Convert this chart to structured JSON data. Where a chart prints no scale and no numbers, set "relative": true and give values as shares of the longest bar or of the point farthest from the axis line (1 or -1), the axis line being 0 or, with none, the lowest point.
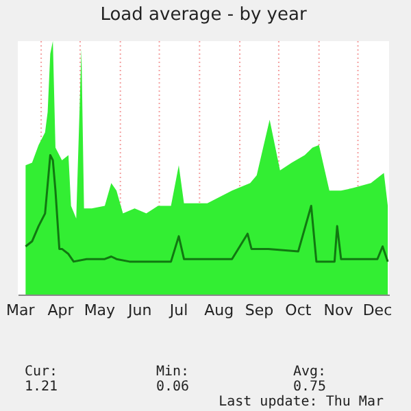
{
  "chart_data": {
    "type": "area",
    "title": "Load average - by year",
    "relative": true,
    "xlim": [
      "--03-14",
      "--12-25"
    ],
    "xticks": [
      {
        "value": "--03-16",
        "label": "Mar"
      },
      {
        "value": "--04-01",
        "label": null
      },
      {
        "value": "--04-16",
        "label": "Apr"
      },
      {
        "value": "--05-01",
        "label": null
      },
      {
        "value": "--05-16",
        "label": "May"
      },
      {
        "value": "--06-01",
        "label": null
      },
      {
        "value": "--06-16",
        "label": "Jun"
      },
      {
        "value": "--07-01",
        "label": null
      },
      {
        "value": "--07-16",
        "label": "Jul"
      },
      {
        "value": "--08-01",
        "label": null
      },
      {
        "value": "--08-16",
        "label": "Aug"
      },
      {
        "value": "--09-01",
        "label": null
      },
      {
        "value": "--09-16",
        "label": "Sep"
      },
      {
        "value": "--10-01",
        "label": null
      },
      {
        "value": "--10-16",
        "label": "Oct"
      },
      {
        "value": "--11-01",
        "label": null
      },
      {
        "value": "--11-16",
        "label": "Nov"
      },
      {
        "value": "--12-01",
        "label": null
      },
      {
        "value": "--12-16",
        "label": "Dec"
      }
    ],
    "grid": "x",
    "series": [
      {
        "color": "#33ee33",
        "x": [
          "--03-20",
          "--03-25",
          "--03-30",
          "--04-04",
          "--04-06",
          "--04-08",
          "--04-10",
          "--04-12",
          "--04-17",
          "--04-22",
          "--04-24",
          "--04-28",
          "--05-02",
          "--05-04",
          "--05-10",
          "--05-20",
          "--05-25",
          "--05-29",
          "--06-03",
          "--06-12",
          "--06-21",
          "--06-30",
          "--07-10",
          "--07-16",
          "--07-20",
          "--08-07",
          "--08-26",
          "--09-09",
          "--09-14",
          "--09-24",
          "--10-02",
          "--10-11",
          "--10-21",
          "--10-27",
          "--11-01",
          "--11-09",
          "--11-18",
          "--11-27",
          "--12-11",
          "--12-21",
          "--12-24"
        ],
        "values": [
          0.51,
          0.52,
          0.59,
          0.64,
          0.72,
          0.95,
          1,
          0.58,
          0.53,
          0.55,
          0.35,
          0.3,
          0.97,
          0.34,
          0.34,
          0.35,
          0.44,
          0.41,
          0.32,
          0.34,
          0.32,
          0.35,
          0.35,
          0.51,
          0.36,
          0.36,
          0.41,
          0.44,
          0.47,
          0.69,
          0.49,
          0.52,
          0.55,
          0.58,
          0.59,
          0.41,
          0.41,
          0.42,
          0.44,
          0.48,
          0.35
        ]
      },
      {
        "type": "line",
        "color": "#117711",
        "x": [
          "--03-20",
          "--03-25",
          "--03-30",
          "--04-04",
          "--04-08",
          "--04-10",
          "--04-12",
          "--04-15",
          "--04-17",
          "--04-22",
          "--04-26",
          "--05-06",
          "--05-20",
          "--05-25",
          "--05-29",
          "--06-08",
          "--06-17",
          "--07-10",
          "--07-16",
          "--07-20",
          "--08-07",
          "--08-26",
          "--09-07",
          "--09-10",
          "--09-23",
          "--10-16",
          "--10-26",
          "--10-30",
          "--11-13",
          "--11-15",
          "--11-18",
          "--12-16",
          "--12-20",
          "--12-24"
        ],
        "values": [
          0.19,
          0.21,
          0.27,
          0.32,
          0.55,
          0.53,
          0.41,
          0.18,
          0.18,
          0.16,
          0.13,
          0.14,
          0.14,
          0.15,
          0.14,
          0.13,
          0.13,
          0.13,
          0.23,
          0.14,
          0.14,
          0.14,
          0.24,
          0.18,
          0.18,
          0.17,
          0.35,
          0.13,
          0.13,
          0.27,
          0.14,
          0.14,
          0.19,
          0.13
        ]
      }
    ],
    "annotations": [
      "Cur:",
      "Min:",
      "Avg:",
      "1.21",
      "0.06",
      "0.75",
      "Last update: Thu Mar"
    ]
  }
}
